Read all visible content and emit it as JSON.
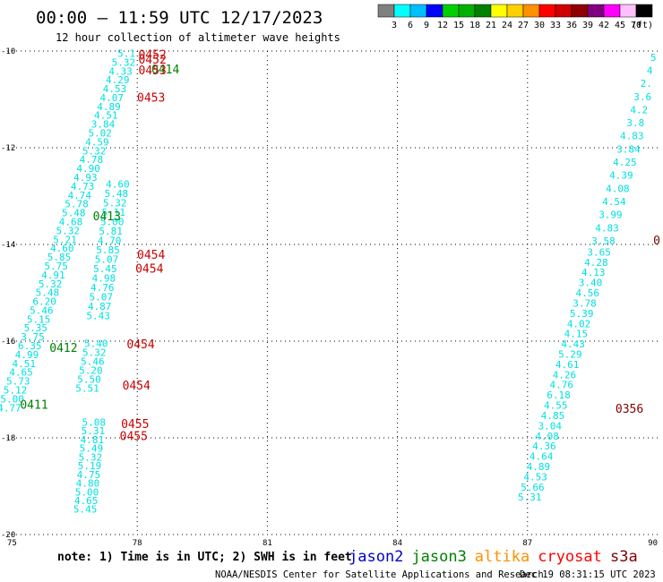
{
  "header": {
    "title": "00:00 — 11:59 UTC 12/17/2023",
    "subtitle": "12 hour collection of altimeter wave heights"
  },
  "colorbar": {
    "unit": "(ft)",
    "bins": [
      {
        "label": "3",
        "color": "#808080"
      },
      {
        "label": "6",
        "color": "#00ffff"
      },
      {
        "label": "9",
        "color": "#00bfff"
      },
      {
        "label": "12",
        "color": "#0000ff"
      },
      {
        "label": "15",
        "color": "#00d000"
      },
      {
        "label": "18",
        "color": "#00b000"
      },
      {
        "label": "21",
        "color": "#008000"
      },
      {
        "label": "24",
        "color": "#ffff00"
      },
      {
        "label": "27",
        "color": "#ffd000"
      },
      {
        "label": "30",
        "color": "#ff9000"
      },
      {
        "label": "33",
        "color": "#ff0000"
      },
      {
        "label": "36",
        "color": "#d00000"
      },
      {
        "label": "39",
        "color": "#900000"
      },
      {
        "label": "42",
        "color": "#800080"
      },
      {
        "label": "45",
        "color": "#ff00ff"
      },
      {
        "label": "70",
        "color": "#ffc0ff"
      },
      {
        "label": "",
        "color": "#000000"
      }
    ]
  },
  "footer": {
    "note": "note:  1) Time is in UTC;  2) SWH is in feet",
    "credit": "NOAA/NESDIS Center for Satellite Applications and Research",
    "timestamp": "Dec 19 08:31:15 UTC 2023",
    "satellites": [
      {
        "name": "jason2",
        "color": "#0000cc"
      },
      {
        "name": "jason3",
        "color": "#008000"
      },
      {
        "name": "altika",
        "color": "#ff9000"
      },
      {
        "name": "cryosat",
        "color": "#ff0000"
      },
      {
        "name": "s3a",
        "color": "#800000"
      }
    ]
  },
  "chart_data": {
    "type": "scatter",
    "xlim": [
      75,
      90
    ],
    "ylim": [
      -20,
      -10
    ],
    "xticks": [
      75,
      78,
      81,
      84,
      87,
      90
    ],
    "yticks": [
      -10,
      -12,
      -14,
      -16,
      -18,
      -20
    ],
    "xtick_labels": [
      "75",
      "78",
      "81",
      "84",
      "87",
      "90"
    ],
    "ytick_labels": [
      "-10",
      "-12",
      "-14",
      "-16",
      "-18",
      "-20"
    ],
    "value_color": "#00e0e0",
    "grid": "dotted",
    "tracks": [
      {
        "x0": 77.75,
        "y0": -10.12,
        "x1": 75.05,
        "y1": -17.45,
        "values": [
          "5.1",
          "5.32",
          "4.33",
          "4.29",
          "4.53",
          "4.07",
          "4.89",
          "4.51",
          "3.84",
          "5.02",
          "4.59",
          "5.32",
          "4.78",
          "4.90",
          "4.93",
          "4.73",
          "4.74",
          "5.78",
          "5.48",
          "4.68",
          "5.32",
          "5.21",
          "4.60",
          "5.85",
          "5.75",
          "4.91",
          "5.32",
          "5.48",
          "6.20",
          "5.46",
          "5.15",
          "5.35",
          "3.75",
          "6.35",
          "4.99",
          "4.51",
          "4.65",
          "5.73",
          "5.12",
          "5.00",
          "4.77"
        ]
      },
      {
        "x0": 77.55,
        "y0": -12.82,
        "x1": 77.1,
        "y1": -15.55,
        "values": [
          "4.60",
          "5.48",
          "5.32",
          "5.11",
          "5.00",
          "5.81",
          "4.70",
          "5.85",
          "5.07",
          "5.45",
          "4.98",
          "4.76",
          "5.07",
          "4.87",
          "5.43"
        ]
      },
      {
        "x0": 77.05,
        "y0": -16.12,
        "x1": 76.85,
        "y1": -17.05,
        "values": [
          "5.40",
          "5.32",
          "5.46",
          "5.20",
          "5.50",
          "5.51"
        ]
      },
      {
        "x0": 77.0,
        "y0": -17.75,
        "x1": 76.8,
        "y1": -19.55,
        "values": [
          "5.08",
          "5.31",
          "4.81",
          "5.49",
          "5.32",
          "5.19",
          "4.75",
          "4.80",
          "5.00",
          "4.65",
          "5.45"
        ]
      },
      {
        "x0": 89.9,
        "y0": -10.2,
        "x1": 88.75,
        "y1": -14.0,
        "values": [
          "5",
          "4",
          "2.",
          "3.6",
          "4.2",
          "3.8",
          "4.83",
          "3.84",
          "4.25",
          "4.39",
          "4.08",
          "4.54",
          "3.99",
          "4.83",
          "3.58"
        ]
      },
      {
        "x0": 88.65,
        "y0": -14.23,
        "x1": 87.05,
        "y1": -19.3,
        "values": [
          "3.65",
          "4.28",
          "4.13",
          "3.40",
          "4.56",
          "3.78",
          "5.39",
          "4.02",
          "4.15",
          "4.43",
          "5.29",
          "4.61",
          "4.26",
          "4.76",
          "6.18",
          "4.55",
          "4.85",
          "3.04",
          "4.08",
          "4.36",
          "4.64",
          "4.89",
          "4.53",
          "5.66",
          "5.31"
        ]
      }
    ],
    "time_labels": [
      {
        "text": "0452",
        "x": 78.35,
        "y": -10.16,
        "color": "#cc0000"
      },
      {
        "text": "0452",
        "x": 78.35,
        "y": -10.26,
        "color": "#cc0000"
      },
      {
        "text": "0414",
        "x": 78.65,
        "y": -10.46,
        "color": "#008000"
      },
      {
        "text": "0453",
        "x": 78.35,
        "y": -10.48,
        "color": "#cc0000"
      },
      {
        "text": "0453",
        "x": 78.32,
        "y": -11.05,
        "color": "#cc0000"
      },
      {
        "text": "0413",
        "x": 77.3,
        "y": -13.5,
        "color": "#008000"
      },
      {
        "text": "0454",
        "x": 78.32,
        "y": -14.3,
        "color": "#cc0000"
      },
      {
        "text": "0454",
        "x": 78.28,
        "y": -14.58,
        "color": "#cc0000"
      },
      {
        "text": "0454",
        "x": 78.08,
        "y": -16.15,
        "color": "#cc0000"
      },
      {
        "text": "0412",
        "x": 76.3,
        "y": -16.22,
        "color": "#008000"
      },
      {
        "text": "0454",
        "x": 77.98,
        "y": -17.0,
        "color": "#cc0000"
      },
      {
        "text": "0411",
        "x": 75.62,
        "y": -17.4,
        "color": "#008000"
      },
      {
        "text": "0455",
        "x": 77.95,
        "y": -17.8,
        "color": "#cc0000"
      },
      {
        "text": "0455",
        "x": 77.92,
        "y": -18.05,
        "color": "#cc0000"
      },
      {
        "text": "0356",
        "x": 89.35,
        "y": -17.48,
        "color": "#800000"
      },
      {
        "text": "0",
        "x": 89.98,
        "y": -14.0,
        "color": "#800000"
      }
    ]
  }
}
